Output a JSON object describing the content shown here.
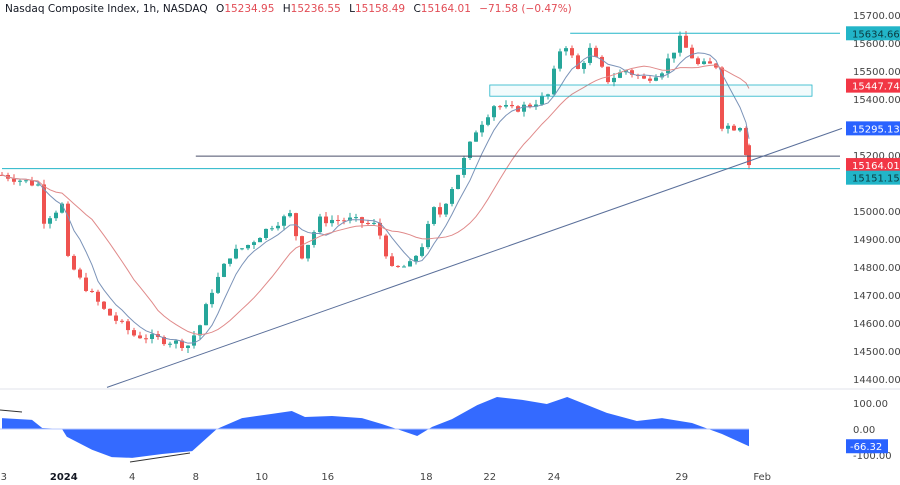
{
  "header": {
    "symbol": "Nasdaq Composite Index, 1h, NASDAQ",
    "open_label": "O",
    "open": "15234.95",
    "high_label": "H",
    "high": "15236.55",
    "low_label": "L",
    "low": "15158.49",
    "close_label": "C",
    "close": "15164.01",
    "change": "−71.58 (−0.47%)"
  },
  "colors": {
    "up": "#26a69a",
    "down": "#ef5350",
    "fast_ma": "#7b93b8",
    "slow_ma": "#e08a8a",
    "cyan": "#22b5c8",
    "oscillator": "#2962ff",
    "trendline": "#5a6f9a",
    "red_label": "#f23645",
    "blue_label": "#2962ff"
  },
  "chart_data": {
    "type": "candlestick",
    "title": "Nasdaq Composite Index, 1h",
    "ylim": [
      14350,
      15760
    ],
    "yticks": [
      "15700.00",
      "15600.00",
      "15500.00",
      "15400.00",
      "15200.00",
      "15000.00",
      "14900.00",
      "14800.00",
      "14700.00",
      "14600.00",
      "14500.00",
      "14400.00"
    ],
    "ytick_values": [
      15700,
      15600,
      15500,
      15400,
      15200,
      15000,
      14900,
      14800,
      14700,
      14600,
      14500,
      14400
    ],
    "xticks": [
      {
        "label": "3",
        "bar": 0.3
      },
      {
        "label": "2024",
        "bar": 10.3,
        "bold": true
      },
      {
        "label": "4",
        "bar": 21.7
      },
      {
        "label": "8",
        "bar": 32.3
      },
      {
        "label": "10",
        "bar": 43.3
      },
      {
        "label": "16",
        "bar": 54.3
      },
      {
        "label": "18",
        "bar": 70.7
      },
      {
        "label": "22",
        "bar": 81.3
      },
      {
        "label": "24",
        "bar": 92
      },
      {
        "label": "29",
        "bar": 113.3
      },
      {
        "label": "Feb",
        "bar": 126.7
      }
    ],
    "close_path_anchors": [
      [
        0,
        15129
      ],
      [
        6,
        15093
      ],
      [
        7,
        14968
      ],
      [
        10,
        15021
      ],
      [
        11,
        14825
      ],
      [
        13,
        14754
      ],
      [
        17,
        14646
      ],
      [
        22,
        14557
      ],
      [
        27,
        14539
      ],
      [
        31,
        14521
      ],
      [
        33,
        14593
      ],
      [
        35,
        14718
      ],
      [
        38,
        14843
      ],
      [
        41,
        14879
      ],
      [
        45,
        14950
      ],
      [
        48,
        14986
      ],
      [
        50,
        14843
      ],
      [
        53,
        14968
      ],
      [
        58,
        14968
      ],
      [
        62,
        14950
      ],
      [
        63,
        14914
      ],
      [
        65,
        14789
      ],
      [
        68,
        14807
      ],
      [
        70,
        14879
      ],
      [
        72,
        15004
      ],
      [
        73,
        14990
      ],
      [
        77,
        15182
      ],
      [
        79,
        15289
      ],
      [
        82,
        15379
      ],
      [
        85,
        15361
      ],
      [
        88,
        15379
      ],
      [
        91,
        15414
      ],
      [
        93,
        15575
      ],
      [
        94,
        15593
      ],
      [
        96,
        15504
      ],
      [
        98,
        15575
      ],
      [
        101,
        15468
      ],
      [
        104,
        15504
      ],
      [
        107,
        15468
      ],
      [
        110,
        15504
      ],
      [
        113,
        15611
      ],
      [
        116,
        15521
      ],
      [
        118,
        15521
      ],
      [
        119,
        15520
      ],
      [
        120,
        15307
      ],
      [
        122,
        15300
      ],
      [
        123,
        15307
      ],
      [
        124.5,
        15164
      ]
    ],
    "oscillator": {
      "ylim": [
        -110,
        125
      ],
      "ticks": [
        "100.00",
        "0.00",
        "-100.00"
      ],
      "tick_values": [
        100,
        0,
        -100
      ],
      "last_label": "-66.32",
      "anchors": [
        [
          0,
          42
        ],
        [
          5,
          35
        ],
        [
          6.7,
          4
        ],
        [
          10,
          0
        ],
        [
          10.8,
          -30
        ],
        [
          15,
          -80
        ],
        [
          18.3,
          -108
        ],
        [
          21.7,
          -111
        ],
        [
          26.7,
          -96
        ],
        [
          31.7,
          -85
        ],
        [
          35.8,
          0
        ],
        [
          40,
          42
        ],
        [
          45,
          58
        ],
        [
          48.3,
          69
        ],
        [
          50.5,
          46
        ],
        [
          55,
          50
        ],
        [
          60,
          42
        ],
        [
          63.3,
          19
        ],
        [
          65.8,
          0
        ],
        [
          69.2,
          -27
        ],
        [
          71.7,
          8
        ],
        [
          75,
          38
        ],
        [
          79.2,
          92
        ],
        [
          82.5,
          123
        ],
        [
          86.7,
          112
        ],
        [
          90.8,
          96
        ],
        [
          94.2,
          123
        ],
        [
          96.7,
          100
        ],
        [
          100.8,
          62
        ],
        [
          105.8,
          31
        ],
        [
          110,
          42
        ],
        [
          115,
          23
        ],
        [
          120,
          -19
        ],
        [
          124.5,
          -66.32
        ]
      ]
    },
    "levels": [
      {
        "name": "resistance-high",
        "value": 15634.66,
        "label": "15634.66",
        "color": "cyan",
        "from_bar": 94.7
      },
      {
        "name": "support-cyan",
        "value": 15151.15,
        "label": "15151.15",
        "color": "cyan",
        "from_bar": 0
      },
      {
        "name": "dark-level",
        "value": 15196,
        "from_bar": 32.3
      }
    ],
    "zone": {
      "top": 15450,
      "bottom": 15410,
      "from_bar": 81.3
    },
    "trendline": {
      "p1": [
        17.5,
        14370
      ],
      "p2": [
        140,
        15295.13
      ],
      "label": "15295.13"
    },
    "price_labels": {
      "slow_ma": "15447.74",
      "last": "15164.01"
    }
  }
}
